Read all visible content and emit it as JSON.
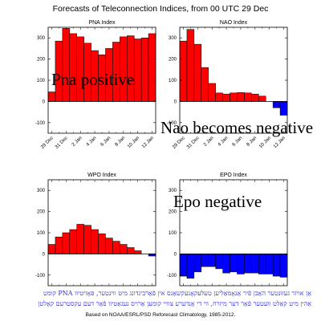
{
  "title": "Forecasts of Teleconnection Indices, from 00 UTC 29 Dec",
  "footer": "Based on NOAA/ESRL/PSD Reforecast Climatology, 1985-2012.",
  "overlay_text": {
    "pna": "Pna positive",
    "nao": "Nao becomes negative",
    "epo": "Epo negative",
    "hebrew_line1": "אַן אויזר געזונטער האַבן פֿיר אַנאָמאַלִיען טעלעקאָנעקשאַנס אין פֿאַרבינדונג מיט ווינטער, פּאָזיטיוו PNA קומט",
    "hebrew_line2": "אַהין מיט קאַלט וועטער פֿאַר דער מיזרח, ווי די אַנדערע צוויי קומען אַרויס נעגאַטיוו פֿאַר דעם עקסטרעם קאַלטן"
  },
  "colors": {
    "positive": "#ff0000",
    "negative": "#0000ff"
  },
  "chart_data": [
    {
      "type": "bar",
      "title": "PNA Index",
      "ylim": [
        -150,
        350
      ],
      "yticks": [
        -100,
        0,
        100,
        200,
        300
      ],
      "categories": [
        "29 Dec",
        "30 Dec",
        "31 Dec",
        "1 Jan",
        "2 Jan",
        "3 Jan",
        "4 Jan",
        "5 Jan",
        "6 Jan",
        "7 Jan",
        "8 Jan",
        "9 Jan",
        "10 Jan",
        "11 Jan",
        "12 Jan"
      ],
      "xticklabels": [
        "29 Dec",
        "31 Dec",
        "2 Jan",
        "4 Jan",
        "6 Jan",
        "8 Jan",
        "10 Jan",
        "12 Jan"
      ],
      "values": [
        45,
        285,
        345,
        320,
        305,
        275,
        240,
        220,
        250,
        280,
        305,
        310,
        295,
        300,
        320
      ]
    },
    {
      "type": "bar",
      "title": "NAO Index",
      "ylim": [
        -150,
        350
      ],
      "yticks": [
        -100,
        0,
        100,
        200,
        300
      ],
      "categories": [
        "29 Dec",
        "30 Dec",
        "31 Dec",
        "1 Jan",
        "2 Jan",
        "3 Jan",
        "4 Jan",
        "5 Jan",
        "6 Jan",
        "7 Jan",
        "8 Jan",
        "9 Jan",
        "10 Jan",
        "11 Jan",
        "12 Jan"
      ],
      "xticklabels": [
        "29 Dec",
        "31 Dec",
        "2 Jan",
        "4 Jan",
        "6 Jan",
        "8 Jan",
        "10 Jan",
        "12 Jan"
      ],
      "values": [
        285,
        340,
        270,
        160,
        85,
        40,
        35,
        40,
        42,
        40,
        35,
        25,
        0,
        -30,
        -65
      ]
    },
    {
      "type": "bar",
      "title": "WPO Index",
      "ylim": [
        -150,
        350
      ],
      "yticks": [
        -100,
        0,
        100,
        200,
        300
      ],
      "categories": [
        "29 Dec",
        "30 Dec",
        "31 Dec",
        "1 Jan",
        "2 Jan",
        "3 Jan",
        "4 Jan",
        "5 Jan",
        "6 Jan",
        "7 Jan",
        "8 Jan",
        "9 Jan",
        "10 Jan",
        "11 Jan",
        "12 Jan"
      ],
      "xticklabels": [],
      "values": [
        45,
        80,
        100,
        115,
        140,
        135,
        115,
        95,
        75,
        60,
        45,
        30,
        15,
        0,
        -10
      ]
    },
    {
      "type": "bar",
      "title": "EPO Index",
      "ylim": [
        -150,
        350
      ],
      "yticks": [
        -100,
        0,
        100,
        200,
        300
      ],
      "categories": [
        "29 Dec",
        "30 Dec",
        "31 Dec",
        "1 Jan",
        "2 Jan",
        "3 Jan",
        "4 Jan",
        "5 Jan",
        "6 Jan",
        "7 Jan",
        "8 Jan",
        "9 Jan",
        "10 Jan",
        "11 Jan",
        "12 Jan"
      ],
      "xticklabels": [],
      "values": [
        -105,
        -115,
        -85,
        -60,
        -60,
        -70,
        -90,
        -85,
        -95,
        -90,
        -90,
        -95,
        -95,
        -105,
        -110
      ]
    }
  ]
}
